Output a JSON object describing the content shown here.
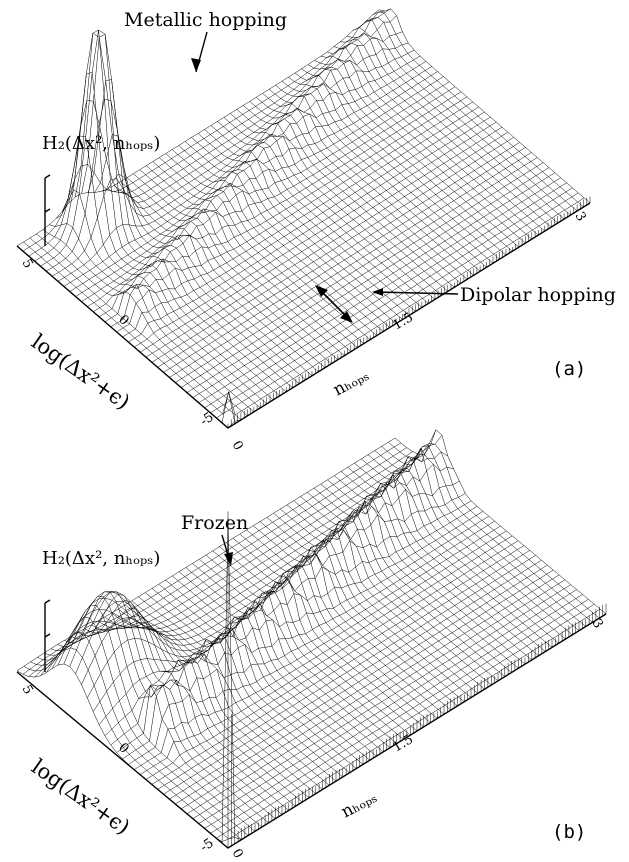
{
  "chart_data": [
    {
      "type": "surface3d",
      "panel_label": "(a)",
      "zlabel": "H₂(Δx², nₕₒₚₛ)",
      "xlabel": "nₕₒₚₛ",
      "ylabel": "log(Δx²+ϵ)",
      "x_ticks": [
        "0",
        "1.5",
        "3"
      ],
      "y_ticks": [
        "-5",
        "0",
        "5"
      ],
      "x_range": [
        0,
        3
      ],
      "y_range": [
        -5,
        5
      ],
      "annotations": [
        "Metallic hopping",
        "Dipolar hopping"
      ],
      "features": [
        {
          "kind": "peak",
          "x": 0.5,
          "y": 4.0,
          "height": 1.0
        },
        {
          "kind": "ridge",
          "x_from": 0.2,
          "x_to": 3.0,
          "y_from": 0.5,
          "y_to": 4.5,
          "height": 0.1
        },
        {
          "kind": "spike",
          "x": 0.05,
          "y": -4.8,
          "height": 0.2
        }
      ]
    },
    {
      "type": "surface3d",
      "panel_label": "(b)",
      "zlabel": "H₂(Δx², nₕₒₚₛ)",
      "xlabel": "nₕₒₚₛ",
      "ylabel": "log(Δx²+ϵ)",
      "x_ticks": [
        "0",
        "1.5",
        "3"
      ],
      "y_ticks": [
        "-5",
        "0",
        "5"
      ],
      "x_range": [
        0,
        3
      ],
      "y_range": [
        -5,
        5
      ],
      "annotations": [
        "Frozen"
      ],
      "features": [
        {
          "kind": "spike",
          "x": 0.0,
          "y": -5.0,
          "height": 1.0
        },
        {
          "kind": "mound",
          "x": 0.3,
          "y": 2.5,
          "height": 0.3
        },
        {
          "kind": "ridge",
          "x_from": 0.3,
          "x_to": 3.0,
          "y_from": 0.0,
          "y_to": 2.8,
          "height": 0.12
        }
      ]
    }
  ]
}
